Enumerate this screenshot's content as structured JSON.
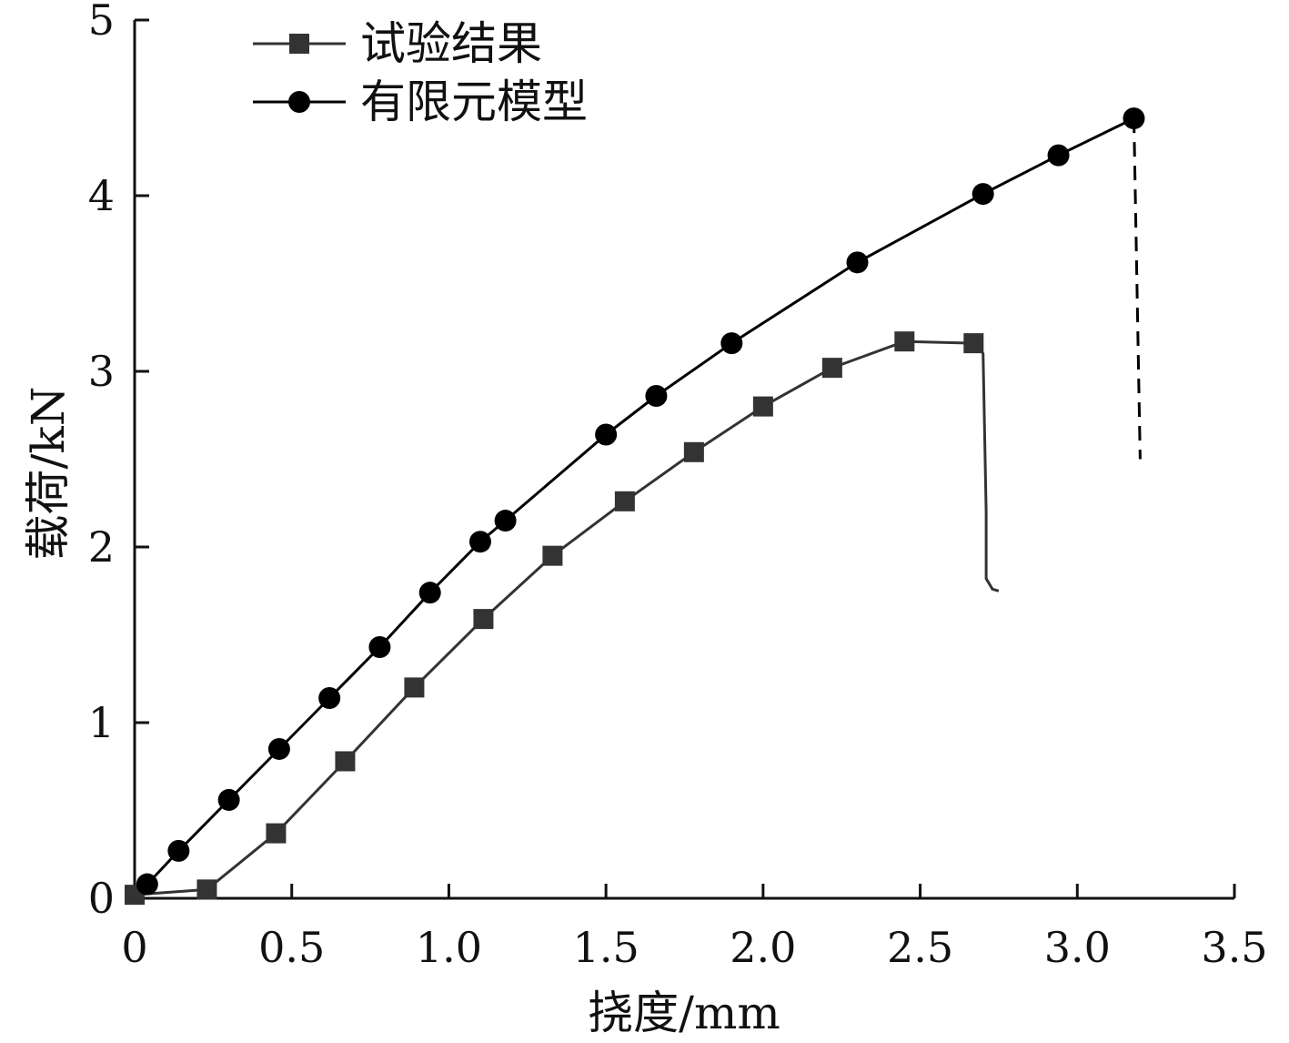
{
  "chart_data": {
    "type": "line",
    "title": "",
    "xlabel": "挠度/mm",
    "ylabel": "载荷/kN",
    "xlim": [
      0,
      3.5
    ],
    "ylim": [
      0,
      5
    ],
    "x_ticks": [
      "0",
      "0.5",
      "1.0",
      "1.5",
      "2.0",
      "2.5",
      "3.0",
      "3.5"
    ],
    "y_ticks": [
      "0",
      "1",
      "2",
      "3",
      "4",
      "5"
    ],
    "grid": false,
    "legend_position": "top-left",
    "series": [
      {
        "name": "试验结果",
        "marker": "square",
        "color": "#333333",
        "markers": [
          [
            0,
            0.02
          ],
          [
            0.23,
            0.05
          ],
          [
            0.45,
            0.37
          ],
          [
            0.67,
            0.78
          ],
          [
            0.89,
            1.2
          ],
          [
            1.11,
            1.59
          ],
          [
            1.33,
            1.95
          ],
          [
            1.56,
            2.26
          ],
          [
            1.78,
            2.54
          ],
          [
            2.0,
            2.8
          ],
          [
            2.22,
            3.02
          ],
          [
            2.45,
            3.17
          ],
          [
            2.67,
            3.16
          ]
        ],
        "tail": [
          [
            2.69,
            3.14
          ],
          [
            2.7,
            3.1
          ],
          [
            2.71,
            2.2
          ],
          [
            2.71,
            1.82
          ],
          [
            2.73,
            1.76
          ],
          [
            2.75,
            1.75
          ]
        ]
      },
      {
        "name": "有限元模型",
        "marker": "circle",
        "color": "#000000",
        "markers": [
          [
            0.04,
            0.08
          ],
          [
            0.14,
            0.27
          ],
          [
            0.3,
            0.56
          ],
          [
            0.46,
            0.85
          ],
          [
            0.62,
            1.14
          ],
          [
            0.78,
            1.43
          ],
          [
            0.94,
            1.74
          ],
          [
            1.1,
            2.03
          ],
          [
            1.18,
            2.15
          ],
          [
            1.5,
            2.64
          ],
          [
            1.66,
            2.86
          ],
          [
            1.9,
            3.16
          ],
          [
            2.3,
            3.62
          ],
          [
            2.7,
            4.01
          ],
          [
            2.94,
            4.23
          ],
          [
            3.18,
            4.44
          ]
        ],
        "drop": [
          [
            3.18,
            4.44
          ],
          [
            3.2,
            2.5
          ]
        ]
      }
    ]
  }
}
